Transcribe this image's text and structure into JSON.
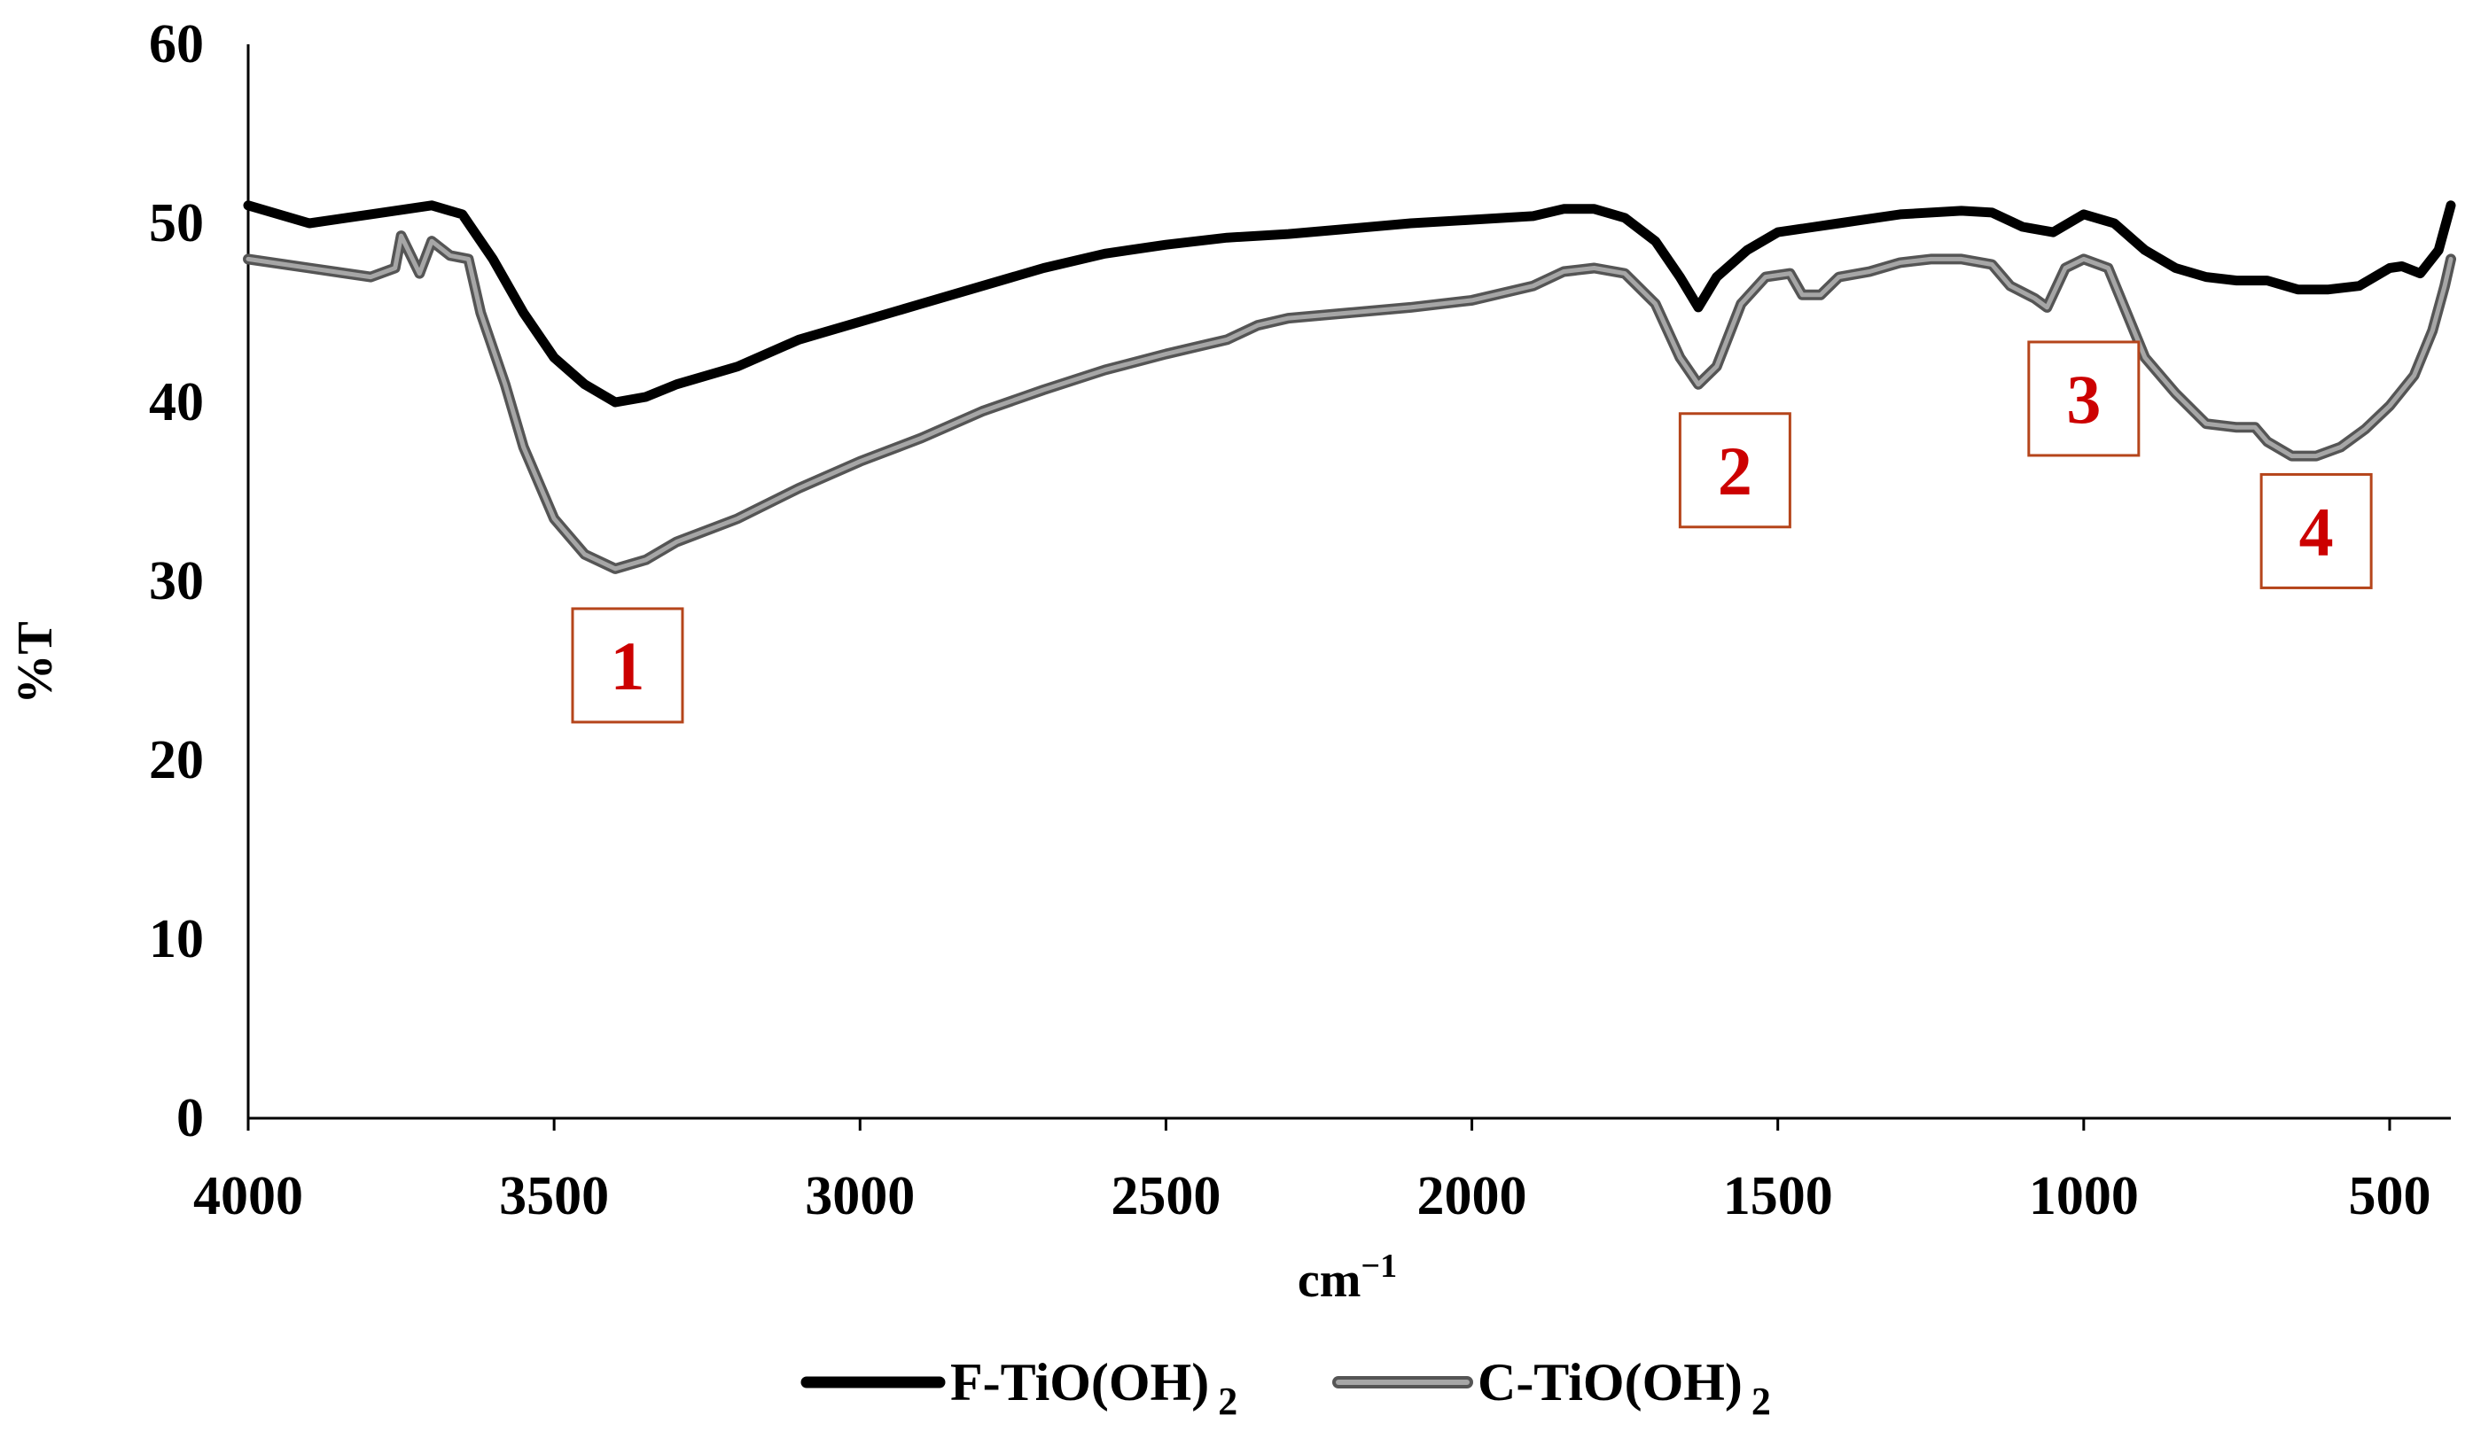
{
  "chart_data": {
    "type": "line",
    "xlabel": "cm⁻¹",
    "ylabel": "%T",
    "xlim": [
      4000,
      400
    ],
    "ylim": [
      0,
      60
    ],
    "x_reversed": true,
    "x_ticks": [
      4000,
      3500,
      3000,
      2500,
      2000,
      1500,
      1000,
      500
    ],
    "y_ticks": [
      0,
      10,
      20,
      30,
      40,
      50,
      60
    ],
    "grid": false,
    "legend_position": "bottom",
    "series": [
      {
        "name": "F-TiO(OH)",
        "name_sub": "2",
        "color": "#000000",
        "points": [
          [
            4000,
            51
          ],
          [
            3900,
            50
          ],
          [
            3800,
            50.5
          ],
          [
            3700,
            51
          ],
          [
            3650,
            50.5
          ],
          [
            3600,
            48
          ],
          [
            3550,
            45
          ],
          [
            3500,
            42.5
          ],
          [
            3450,
            41
          ],
          [
            3400,
            40
          ],
          [
            3350,
            40.3
          ],
          [
            3300,
            41
          ],
          [
            3200,
            42
          ],
          [
            3100,
            43.5
          ],
          [
            3000,
            44.5
          ],
          [
            2900,
            45.5
          ],
          [
            2800,
            46.5
          ],
          [
            2700,
            47.5
          ],
          [
            2600,
            48.3
          ],
          [
            2500,
            48.8
          ],
          [
            2400,
            49.2
          ],
          [
            2300,
            49.4
          ],
          [
            2200,
            49.7
          ],
          [
            2100,
            50
          ],
          [
            2000,
            50.2
          ],
          [
            1900,
            50.4
          ],
          [
            1850,
            50.8
          ],
          [
            1800,
            50.8
          ],
          [
            1750,
            50.3
          ],
          [
            1700,
            49
          ],
          [
            1660,
            47
          ],
          [
            1630,
            45.3
          ],
          [
            1600,
            47
          ],
          [
            1550,
            48.5
          ],
          [
            1500,
            49.5
          ],
          [
            1400,
            50
          ],
          [
            1300,
            50.5
          ],
          [
            1200,
            50.7
          ],
          [
            1150,
            50.6
          ],
          [
            1100,
            49.8
          ],
          [
            1050,
            49.5
          ],
          [
            1000,
            50.5
          ],
          [
            950,
            50
          ],
          [
            900,
            48.5
          ],
          [
            850,
            47.5
          ],
          [
            800,
            47
          ],
          [
            750,
            46.8
          ],
          [
            700,
            46.8
          ],
          [
            650,
            46.3
          ],
          [
            600,
            46.3
          ],
          [
            550,
            46.5
          ],
          [
            500,
            47.5
          ],
          [
            480,
            47.6
          ],
          [
            450,
            47.2
          ],
          [
            420,
            48.5
          ],
          [
            400,
            51
          ]
        ]
      },
      {
        "name": "C-TiO(OH)",
        "name_sub": "2",
        "color": "#888888",
        "points": [
          [
            4000,
            48
          ],
          [
            3900,
            47.5
          ],
          [
            3800,
            47
          ],
          [
            3760,
            47.5
          ],
          [
            3750,
            49.3
          ],
          [
            3720,
            47.2
          ],
          [
            3700,
            49
          ],
          [
            3670,
            48.2
          ],
          [
            3640,
            48
          ],
          [
            3620,
            45
          ],
          [
            3580,
            41
          ],
          [
            3550,
            37.5
          ],
          [
            3500,
            33.5
          ],
          [
            3450,
            31.5
          ],
          [
            3400,
            30.7
          ],
          [
            3350,
            31.2
          ],
          [
            3300,
            32.2
          ],
          [
            3200,
            33.5
          ],
          [
            3100,
            35.2
          ],
          [
            3000,
            36.7
          ],
          [
            2900,
            38
          ],
          [
            2800,
            39.5
          ],
          [
            2700,
            40.7
          ],
          [
            2600,
            41.8
          ],
          [
            2500,
            42.7
          ],
          [
            2400,
            43.5
          ],
          [
            2350,
            44.3
          ],
          [
            2300,
            44.7
          ],
          [
            2200,
            45
          ],
          [
            2100,
            45.3
          ],
          [
            2000,
            45.7
          ],
          [
            1900,
            46.5
          ],
          [
            1850,
            47.3
          ],
          [
            1800,
            47.5
          ],
          [
            1750,
            47.2
          ],
          [
            1700,
            45.5
          ],
          [
            1660,
            42.5
          ],
          [
            1630,
            41
          ],
          [
            1600,
            42
          ],
          [
            1560,
            45.5
          ],
          [
            1520,
            47
          ],
          [
            1480,
            47.2
          ],
          [
            1460,
            46
          ],
          [
            1430,
            46
          ],
          [
            1400,
            47
          ],
          [
            1350,
            47.3
          ],
          [
            1300,
            47.8
          ],
          [
            1250,
            48
          ],
          [
            1200,
            48
          ],
          [
            1150,
            47.7
          ],
          [
            1120,
            46.5
          ],
          [
            1080,
            45.8
          ],
          [
            1060,
            45.3
          ],
          [
            1030,
            47.5
          ],
          [
            1000,
            48
          ],
          [
            960,
            47.5
          ],
          [
            930,
            45
          ],
          [
            900,
            42.5
          ],
          [
            850,
            40.5
          ],
          [
            800,
            38.8
          ],
          [
            750,
            38.6
          ],
          [
            720,
            38.6
          ],
          [
            700,
            37.8
          ],
          [
            660,
            37
          ],
          [
            620,
            37
          ],
          [
            580,
            37.5
          ],
          [
            540,
            38.5
          ],
          [
            500,
            39.8
          ],
          [
            460,
            41.5
          ],
          [
            430,
            44
          ],
          [
            410,
            46.5
          ],
          [
            400,
            48
          ]
        ]
      }
    ],
    "annotations": [
      {
        "text": "1",
        "x": 3380,
        "y": 25.3,
        "color": "#cc0000"
      },
      {
        "text": "2",
        "x": 1570,
        "y": 36.2,
        "color": "#cc0000"
      },
      {
        "text": "3",
        "x": 1000,
        "y": 40.2,
        "color": "#cc0000"
      },
      {
        "text": "4",
        "x": 620,
        "y": 32.8,
        "color": "#cc0000"
      }
    ]
  }
}
